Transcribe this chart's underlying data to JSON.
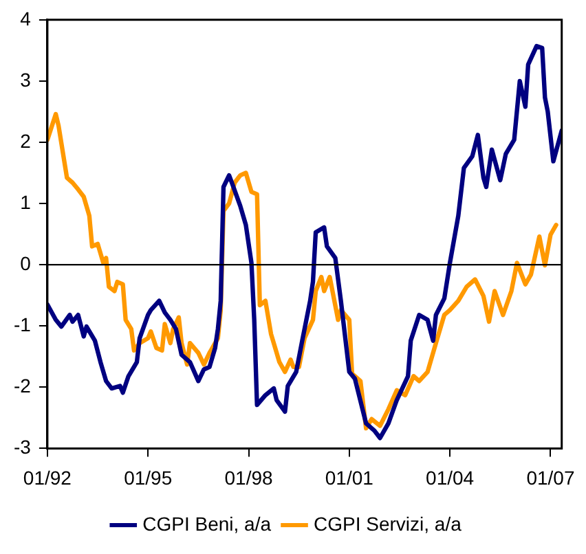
{
  "chart_data": {
    "type": "line",
    "xlim": [
      "1992-01",
      "2007-05"
    ],
    "xticks": [
      {
        "value": "1992-01",
        "label": "01/92"
      },
      {
        "value": "1995-01",
        "label": "01/95"
      },
      {
        "value": "1998-01",
        "label": "01/98"
      },
      {
        "value": "2001-01",
        "label": "01/01"
      },
      {
        "value": "2004-01",
        "label": "01/04"
      },
      {
        "value": "2007-01",
        "label": "01/07"
      }
    ],
    "ylim": [
      -3,
      4
    ],
    "yticks": [
      -3,
      -2,
      -1,
      0,
      1,
      2,
      3,
      4
    ],
    "grid": false,
    "legend": "bottom",
    "marker": "none",
    "line_style": "solid",
    "ref_lines": [
      {
        "axis": "y",
        "value": 0,
        "color": "#000000"
      }
    ],
    "series": [
      {
        "name": "CGPI Beni, a/a",
        "color": "#000080",
        "x": [
          "1992-01",
          "1992-04",
          "1992-06",
          "1992-09",
          "1992-10",
          "1992-12",
          "1993-02",
          "1993-03",
          "1993-06",
          "1993-08",
          "1993-10",
          "1993-12",
          "1994-03",
          "1994-04",
          "1994-06",
          "1994-09",
          "1994-10",
          "1995-01",
          "1995-02",
          "1995-05",
          "1995-07",
          "1995-09",
          "1995-11",
          "1996-01",
          "1996-04",
          "1996-07",
          "1996-09",
          "1996-11",
          "1997-01",
          "1997-02",
          "1997-03",
          "1997-04",
          "1997-06",
          "1997-07",
          "1997-10",
          "1997-12",
          "1998-02",
          "1998-03",
          "1998-04",
          "1998-07",
          "1998-10",
          "1998-11",
          "1999-02",
          "1999-03",
          "1999-06",
          "1999-08",
          "1999-11",
          "1999-12",
          "2000-01",
          "2000-04",
          "2000-05",
          "2000-08",
          "2000-10",
          "2001-01",
          "2001-03",
          "2001-07",
          "2001-10",
          "2001-12",
          "2002-03",
          "2002-06",
          "2002-10",
          "2002-11",
          "2003-02",
          "2003-05",
          "2003-07",
          "2003-08",
          "2003-11",
          "2004-01",
          "2004-04",
          "2004-06",
          "2004-09",
          "2004-11",
          "2005-01",
          "2005-02",
          "2005-04",
          "2005-07",
          "2005-09",
          "2005-12",
          "2006-02",
          "2006-04",
          "2006-05",
          "2006-08",
          "2006-10",
          "2006-11",
          "2006-12",
          "2007-02",
          "2007-05"
        ],
        "values": [
          -0.65,
          -0.9,
          -1.01,
          -0.82,
          -0.93,
          -0.82,
          -1.17,
          -1.01,
          -1.24,
          -1.59,
          -1.9,
          -2.02,
          -1.98,
          -2.09,
          -1.82,
          -1.59,
          -1.2,
          -0.82,
          -0.74,
          -0.59,
          -0.78,
          -0.9,
          -1.05,
          -1.47,
          -1.59,
          -1.9,
          -1.71,
          -1.67,
          -1.36,
          -1.05,
          -0.59,
          1.27,
          1.46,
          1.34,
          0.96,
          0.65,
          0.03,
          -0.9,
          -2.29,
          -2.13,
          -2.02,
          -2.21,
          -2.4,
          -1.98,
          -1.75,
          -1.28,
          -0.59,
          -0.28,
          0.53,
          0.61,
          0.3,
          0.11,
          -0.59,
          -1.75,
          -1.86,
          -2.59,
          -2.71,
          -2.83,
          -2.59,
          -2.21,
          -1.82,
          -1.24,
          -0.82,
          -0.9,
          -1.24,
          -0.82,
          -0.55,
          0.03,
          0.8,
          1.58,
          1.77,
          2.12,
          1.42,
          1.27,
          1.88,
          1.38,
          1.81,
          2.04,
          3.0,
          2.58,
          3.27,
          3.57,
          3.54,
          2.73,
          2.5,
          1.69,
          2.19
        ]
      },
      {
        "name": "CGPI Servizi, a/a",
        "color": "#ff9900",
        "x": [
          "1992-01",
          "1992-04",
          "1992-05",
          "1992-08",
          "1992-10",
          "1992-12",
          "1993-02",
          "1993-04",
          "1993-05",
          "1993-07",
          "1993-09",
          "1993-10",
          "1993-11",
          "1994-01",
          "1994-02",
          "1994-04",
          "1994-05",
          "1994-07",
          "1994-08",
          "1994-10",
          "1995-01",
          "1995-02",
          "1995-04",
          "1995-06",
          "1995-07",
          "1995-09",
          "1995-10",
          "1995-12",
          "1996-01",
          "1996-03",
          "1996-04",
          "1996-07",
          "1996-09",
          "1996-11",
          "1997-02",
          "1997-03",
          "1997-04",
          "1997-06",
          "1997-08",
          "1997-10",
          "1997-12",
          "1998-02",
          "1998-04",
          "1998-05",
          "1998-07",
          "1998-09",
          "1998-12",
          "1999-02",
          "1999-04",
          "1999-05",
          "1999-07",
          "1999-09",
          "1999-12",
          "2000-01",
          "2000-03",
          "2000-04",
          "2000-06",
          "2000-09",
          "2000-10",
          "2001-01",
          "2001-02",
          "2001-05",
          "2001-07",
          "2001-09",
          "2001-12",
          "2002-03",
          "2002-06",
          "2002-09",
          "2002-12",
          "2003-02",
          "2003-05",
          "2003-08",
          "2003-11",
          "2004-01",
          "2004-04",
          "2004-07",
          "2004-10",
          "2005-01",
          "2005-03",
          "2005-05",
          "2005-08",
          "2005-11",
          "2006-01",
          "2006-04",
          "2006-06",
          "2006-09",
          "2006-11",
          "2007-01",
          "2007-03"
        ],
        "values": [
          2.04,
          2.46,
          2.27,
          1.42,
          1.34,
          1.23,
          1.11,
          0.8,
          0.3,
          0.34,
          0.03,
          0.11,
          -0.36,
          -0.43,
          -0.28,
          -0.32,
          -0.9,
          -1.05,
          -1.4,
          -1.28,
          -1.2,
          -1.09,
          -1.36,
          -1.4,
          -0.97,
          -1.28,
          -1.05,
          -0.86,
          -1.28,
          -1.63,
          -1.28,
          -1.44,
          -1.63,
          -1.44,
          -1.2,
          -0.74,
          0.88,
          1.0,
          1.34,
          1.46,
          1.5,
          1.19,
          1.15,
          -0.66,
          -0.59,
          -1.13,
          -1.59,
          -1.75,
          -1.55,
          -1.67,
          -1.67,
          -1.2,
          -0.9,
          -0.43,
          -0.2,
          -0.43,
          -0.2,
          -0.9,
          -0.74,
          -0.9,
          -1.78,
          -1.9,
          -2.67,
          -2.52,
          -2.63,
          -2.36,
          -2.05,
          -2.13,
          -1.82,
          -1.9,
          -1.75,
          -1.28,
          -0.82,
          -0.74,
          -0.59,
          -0.36,
          -0.24,
          -0.51,
          -0.93,
          -0.43,
          -0.82,
          -0.43,
          0.03,
          -0.32,
          -0.16,
          0.46,
          -0.01,
          0.49,
          0.65
        ]
      }
    ]
  }
}
